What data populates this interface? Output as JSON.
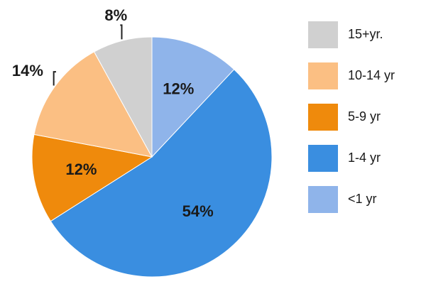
{
  "chart_data": {
    "type": "pie",
    "categories": [
      "<1 yr",
      "1-4 yr",
      "5-9 yr",
      "10-14 yr",
      "15+yr."
    ],
    "values": [
      12,
      54,
      12,
      14,
      8
    ],
    "value_labels": [
      "12%",
      "54%",
      "12%",
      "14%",
      "8%"
    ],
    "colors": [
      "#8fb4ea",
      "#3a8ee0",
      "#ef8a0c",
      "#fbbf83",
      "#d0d0d0"
    ],
    "legend": "right"
  }
}
